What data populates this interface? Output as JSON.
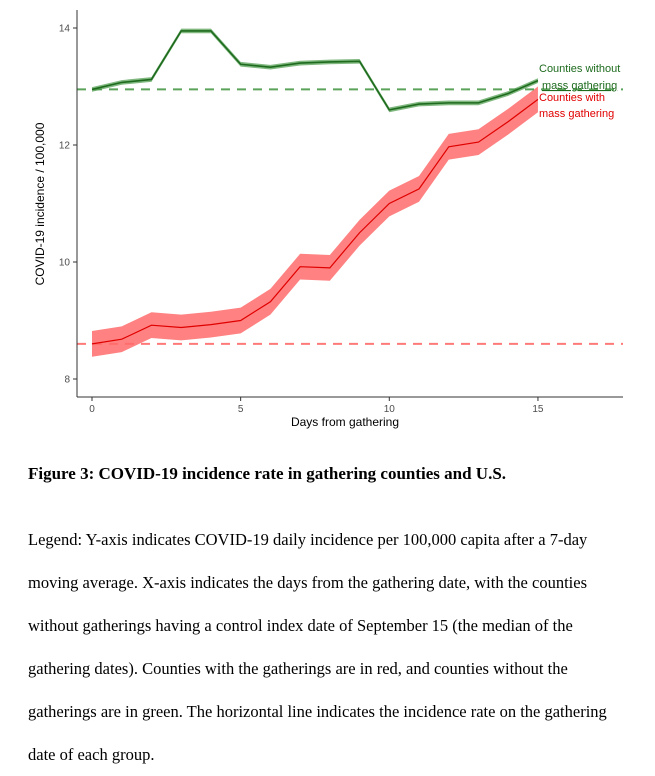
{
  "chart_data": {
    "type": "line",
    "title": "",
    "xlabel": "Days from gathering",
    "ylabel": "COVID-19 incidence / 100,000",
    "xlim": [
      -0.5,
      17.9
    ],
    "ylim": [
      7.7,
      14.3
    ],
    "xticks": [
      0,
      5,
      10,
      15
    ],
    "yticks": [
      8,
      10,
      12,
      14
    ],
    "grid": false,
    "x": [
      0,
      1,
      2,
      3,
      4,
      5,
      6,
      7,
      8,
      9,
      10,
      11,
      12,
      13,
      14,
      15
    ],
    "series": [
      {
        "name": "Counties without mass gathering",
        "label_lines": [
          "Counties without",
          "mass gathering"
        ],
        "color": "#1e6b1e",
        "band_color": "#4a9a4a",
        "values": [
          12.95,
          13.07,
          13.12,
          13.95,
          13.95,
          13.38,
          13.33,
          13.4,
          13.42,
          13.43,
          12.6,
          12.7,
          12.72,
          12.72,
          12.88,
          13.1
        ],
        "ci_halfwidth": 0.04,
        "baseline": 12.95
      },
      {
        "name": "Counties with mass gathering",
        "label_lines": [
          "Counties with",
          "mass gathering"
        ],
        "color": "#e00000",
        "band_color": "#ff6b6b",
        "values": [
          8.6,
          8.68,
          8.92,
          8.88,
          8.93,
          9.0,
          9.32,
          9.92,
          9.9,
          10.5,
          11.0,
          11.25,
          11.97,
          12.05,
          12.4,
          12.78
        ],
        "ci_halfwidth": 0.22,
        "baseline": 8.6
      }
    ]
  },
  "caption": {
    "title": "Figure 3: COVID-19 incidence rate in gathering counties and U.S.",
    "legend_text": "Legend: Y-axis indicates COVID-19 daily incidence per 100,000 capita after a 7-day moving average. X-axis indicates the days from the gathering date, with the counties without gatherings having a control index date of September 15 (the median of the gathering dates). Counties with the gatherings are in red, and counties without the gatherings are in green. The horizontal line indicates the incidence rate on the gathering date of each group."
  }
}
